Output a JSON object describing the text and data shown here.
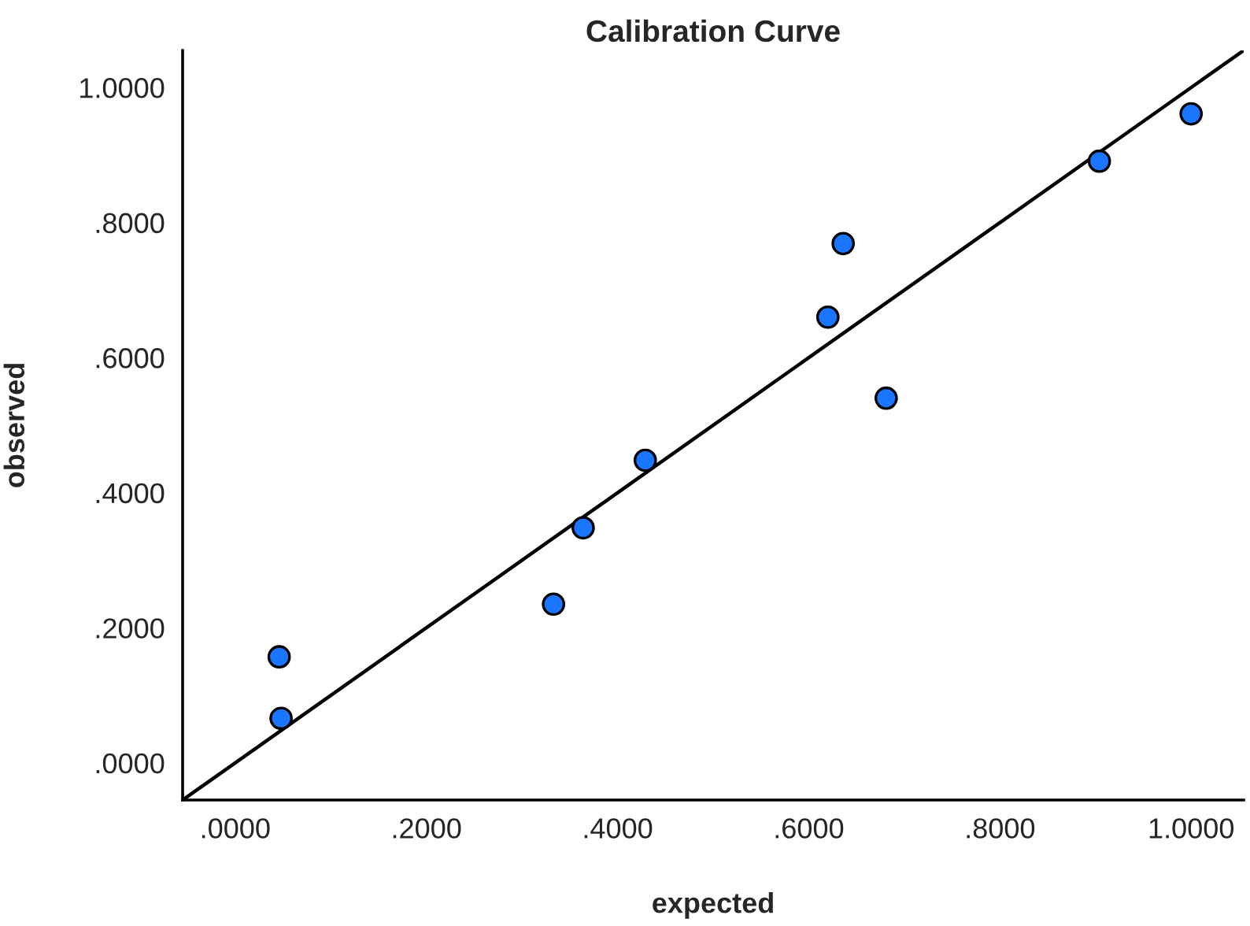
{
  "chart_data": {
    "type": "scatter",
    "title": "Calibration Curve",
    "xlabel": "expected",
    "ylabel": "observed",
    "series": [
      {
        "type": "scatter",
        "color": "#1a75ff",
        "marker": "circle",
        "x": [
          0.046,
          0.048,
          0.333,
          0.364,
          0.429,
          0.62,
          0.636,
          0.681,
          0.904,
          1.0
        ],
        "values": [
          0.157,
          0.066,
          0.235,
          0.348,
          0.448,
          0.66,
          0.769,
          0.54,
          0.891,
          0.961
        ]
      },
      {
        "type": "line",
        "color": "#000000",
        "line_style": "solid",
        "marker": "none",
        "x": [
          -0.055,
          1.055
        ],
        "values": [
          -0.055,
          1.055
        ]
      }
    ],
    "xlim": [
      -0.055,
      1.055
    ],
    "ylim": [
      -0.055,
      1.055
    ],
    "xticks": [
      {
        "value": 0,
        "label": ".0000"
      },
      {
        "value": 0.2,
        "label": ".2000"
      },
      {
        "value": 0.4,
        "label": ".4000"
      },
      {
        "value": 0.6,
        "label": ".6000"
      },
      {
        "value": 0.8,
        "label": ".8000"
      },
      {
        "value": 1.0,
        "label": "1.0000"
      }
    ],
    "yticks": [
      {
        "value": 0,
        "label": ".0000"
      },
      {
        "value": 0.2,
        "label": ".2000"
      },
      {
        "value": 0.4,
        "label": ".4000"
      },
      {
        "value": 0.6,
        "label": ".6000"
      },
      {
        "value": 0.8,
        "label": ".8000"
      },
      {
        "value": 1.0,
        "label": "1.0000"
      }
    ],
    "grid": false,
    "legend": false
  }
}
